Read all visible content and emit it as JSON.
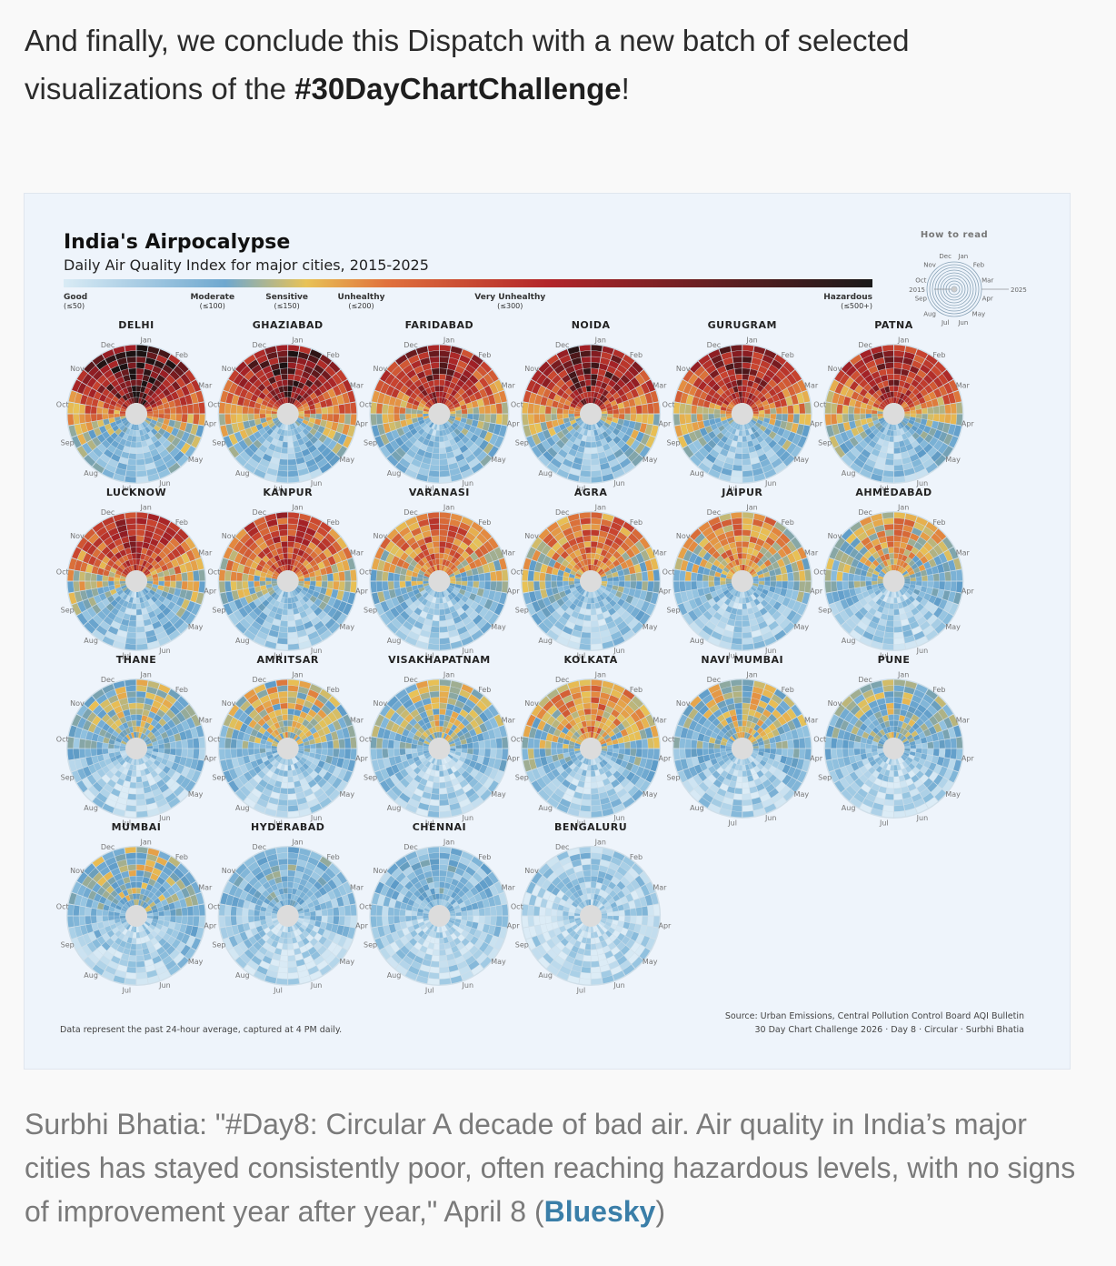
{
  "intro": {
    "text_before": "And finally, we conclude this Dispatch with a new batch of selected visualizations of the ",
    "hashtag": "#30DayChartChallenge",
    "text_after": "!"
  },
  "chart_data": {
    "type": "radial-heatmap",
    "title": "India's Airpocalypse",
    "subtitle": "Daily Air Quality Index for major cities, 2015-2025",
    "legend": [
      {
        "label": "Good",
        "value": "(≤50)",
        "aqi": 50,
        "color": "#d9ebf5"
      },
      {
        "label": "Moderate",
        "value": "(≤100)",
        "aqi": 100,
        "color": "#6fa8cf"
      },
      {
        "label": "Sensitive",
        "value": "(≤150)",
        "aqi": 150,
        "color": "#e8c256"
      },
      {
        "label": "Unhealthy",
        "value": "(≤200)",
        "aqi": 200,
        "color": "#e0713d"
      },
      {
        "label": "Very Unhealthy",
        "value": "(≤300)",
        "aqi": 300,
        "color": "#b2252a"
      },
      {
        "label": "Hazardous",
        "value": "(≤500+)",
        "aqi": 500,
        "color": "#1a1a1a"
      }
    ],
    "how_to_read": {
      "title": "How to read",
      "inner_year": "2015",
      "outer_year": "2025",
      "months": [
        "Jan",
        "Feb",
        "Mar",
        "Apr",
        "May",
        "Jun",
        "Jul",
        "Aug",
        "Sep",
        "Oct",
        "Nov",
        "Dec"
      ]
    },
    "month_labels": [
      "Jan",
      "Feb",
      "Mar",
      "Apr",
      "May",
      "Jun",
      "Jul",
      "Aug",
      "Sep",
      "Oct",
      "Nov",
      "Dec"
    ],
    "cities": [
      {
        "name": "DELHI",
        "severity": 0.95
      },
      {
        "name": "GHAZIABAD",
        "severity": 0.9
      },
      {
        "name": "FARIDABAD",
        "severity": 0.82
      },
      {
        "name": "NOIDA",
        "severity": 0.88
      },
      {
        "name": "GURUGRAM",
        "severity": 0.83
      },
      {
        "name": "PATNA",
        "severity": 0.8
      },
      {
        "name": "LUCKNOW",
        "severity": 0.75
      },
      {
        "name": "KANPUR",
        "severity": 0.72
      },
      {
        "name": "VARANASI",
        "severity": 0.62
      },
      {
        "name": "AGRA",
        "severity": 0.6
      },
      {
        "name": "JAIPUR",
        "severity": 0.55
      },
      {
        "name": "AHMEDABAD",
        "severity": 0.5
      },
      {
        "name": "THANE",
        "severity": 0.38
      },
      {
        "name": "AMRITSAR",
        "severity": 0.45
      },
      {
        "name": "VISAKHAPATNAM",
        "severity": 0.4
      },
      {
        "name": "KOLKATA",
        "severity": 0.55
      },
      {
        "name": "NAVI MUMBAI",
        "severity": 0.42
      },
      {
        "name": "PUNE",
        "severity": 0.35
      },
      {
        "name": "MUMBAI",
        "severity": 0.38
      },
      {
        "name": "HYDERABAD",
        "severity": 0.25
      },
      {
        "name": "CHENNAI",
        "severity": 0.22
      },
      {
        "name": "BENGALURU",
        "severity": 0.12
      }
    ],
    "footnote": "Data represent the past 24-hour average, captured at 4 PM daily.",
    "source_line1": "Source: Urban Emissions, Central Pollution Control Board AQI Bulletin",
    "source_line2": "30 Day Chart Challenge 2026 · Day 8 · Circular · Surbhi Bhatia"
  },
  "caption": {
    "text": "Surbhi Bhatia: \"#Day8: Circular A decade of bad air. Air quality in India’s major cities has stayed consistently poor, often reaching hazardous levels, with no signs of improvement year after year,\" April 8 (",
    "link": "Bluesky",
    "text_after": ")"
  }
}
